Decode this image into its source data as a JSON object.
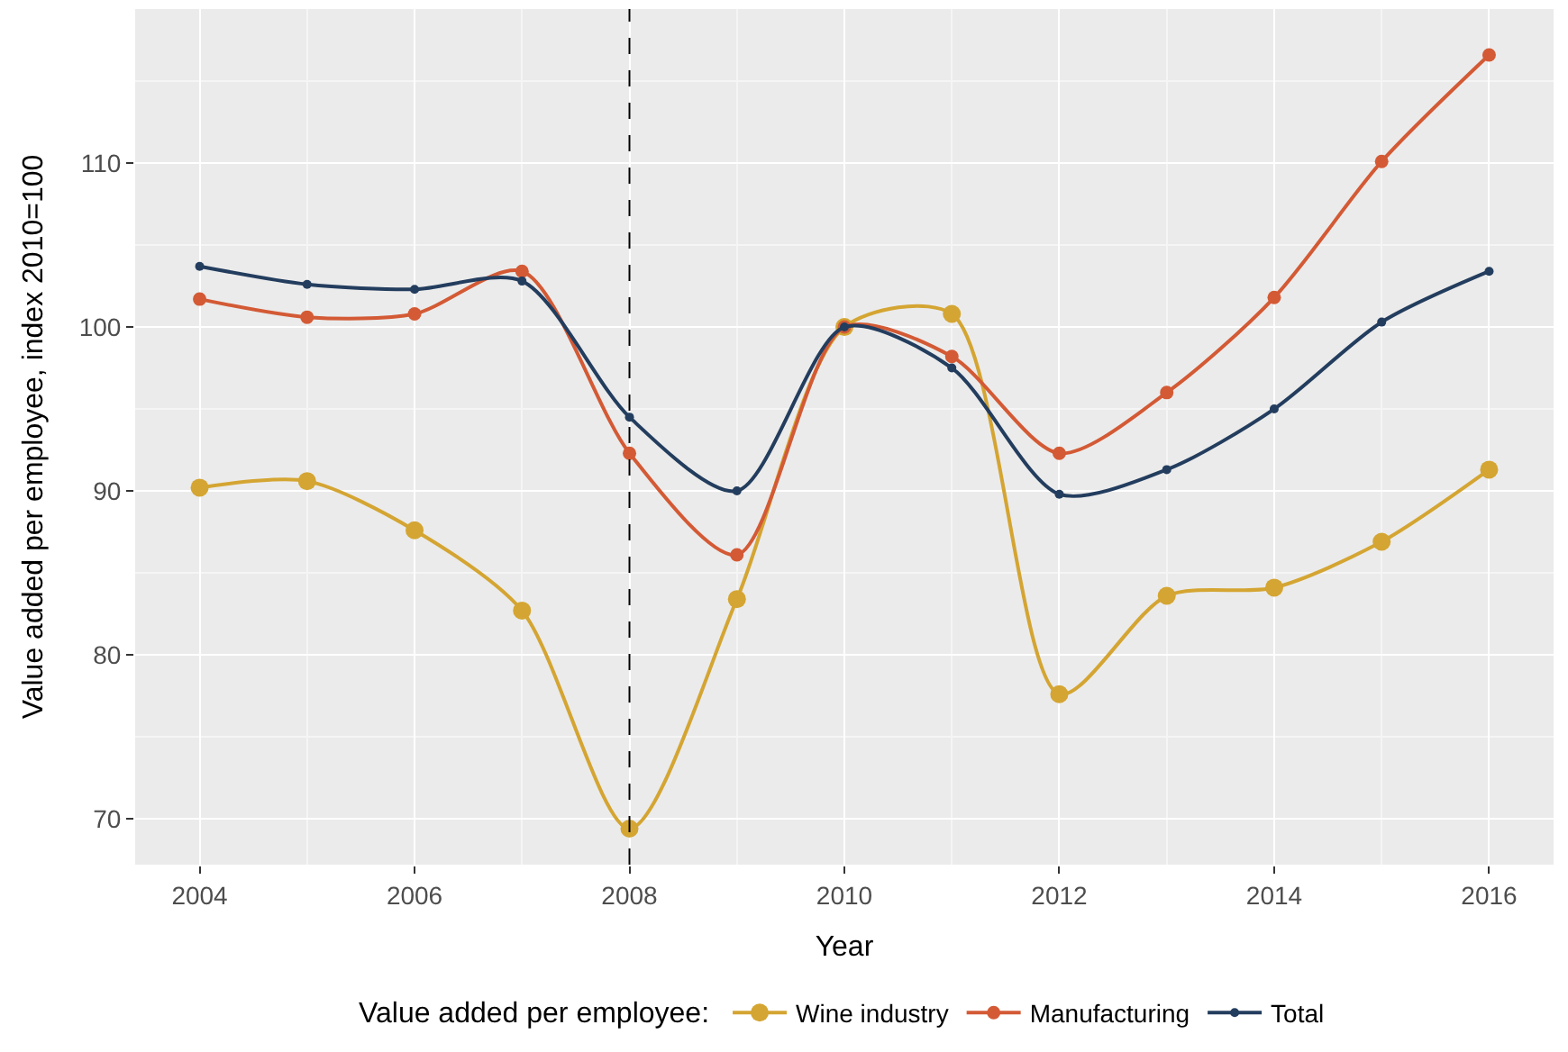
{
  "chart_data": {
    "type": "line",
    "xlabel": "Year",
    "ylabel": "Value added per employee, index 2010=100",
    "legend_title": "Value added per employee:",
    "x": [
      2004,
      2005,
      2006,
      2007,
      2008,
      2009,
      2010,
      2011,
      2012,
      2013,
      2014,
      2015,
      2016
    ],
    "series": [
      {
        "name": "Wine industry",
        "color": "#d4a532",
        "values": [
          90.2,
          90.6,
          87.6,
          82.7,
          69.4,
          83.4,
          100,
          100.8,
          77.6,
          83.6,
          84.1,
          86.9,
          91.3
        ]
      },
      {
        "name": "Manufacturing",
        "color": "#d35a35",
        "values": [
          101.7,
          100.6,
          100.8,
          103.4,
          92.3,
          86.1,
          100,
          98.2,
          92.3,
          96.0,
          101.8,
          110.1,
          116.6
        ]
      },
      {
        "name": "Total",
        "color": "#233d5e",
        "values": [
          103.7,
          102.6,
          102.3,
          102.8,
          94.5,
          90.0,
          100,
          97.5,
          89.8,
          91.3,
          95.0,
          100.3,
          103.4
        ]
      }
    ],
    "xlim": [
      2003.4,
      2016.6
    ],
    "xticks": [
      2004,
      2006,
      2008,
      2010,
      2012,
      2014,
      2016
    ],
    "ylim": [
      67.2,
      119.4
    ],
    "yticks": [
      70,
      80,
      90,
      100,
      110
    ],
    "ref_lines": [
      {
        "axis": "x",
        "value": 2008,
        "color": "#000000",
        "line_style": "dashed"
      }
    ],
    "grid": true,
    "legend": "bottom",
    "marker": "circle",
    "line_style": "solid"
  }
}
